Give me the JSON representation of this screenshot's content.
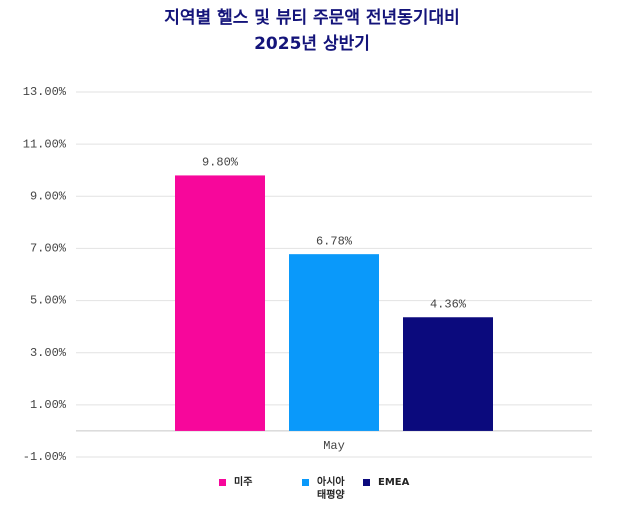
{
  "chart_data": {
    "type": "bar",
    "title": "지역별 헬스 및 뷰티 주문액 전년동기대비",
    "subtitle": "2025년 상반기",
    "categories": [
      "May"
    ],
    "series": [
      {
        "name": "미주",
        "color": "#f7079b",
        "values": [
          9.8
        ],
        "value_labels": [
          "9.80%"
        ]
      },
      {
        "name": "아시아 태평양",
        "color": "#0a99fa",
        "values": [
          6.78
        ],
        "value_labels": [
          "6.78%"
        ]
      },
      {
        "name": "EMEA",
        "color": "#0b0a7d",
        "values": [
          4.36
        ],
        "value_labels": [
          "4.36%"
        ]
      }
    ],
    "ylim": [
      -1,
      13
    ],
    "yticks": [
      {
        "value": -1,
        "label": "-1.00%"
      },
      {
        "value": 1,
        "label": "1.00%"
      },
      {
        "value": 3,
        "label": "3.00%"
      },
      {
        "value": 5,
        "label": "5.00%"
      },
      {
        "value": 7,
        "label": "7.00%"
      },
      {
        "value": 9,
        "label": "9.00%"
      },
      {
        "value": 11,
        "label": "11.00%"
      },
      {
        "value": 13,
        "label": "13.00%"
      }
    ],
    "grid": true
  }
}
